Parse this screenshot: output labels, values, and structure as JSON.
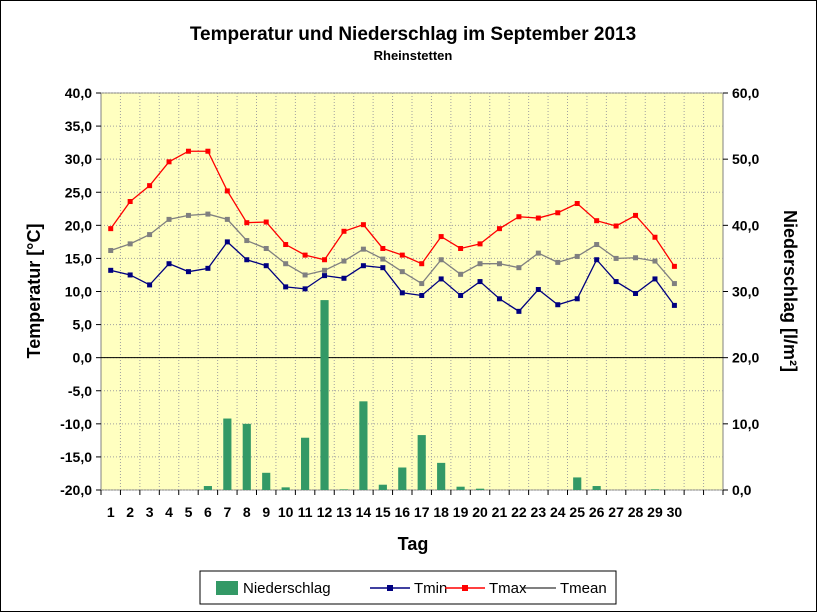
{
  "chart_data": {
    "type": "bar+line",
    "title": "Temperatur und Niederschlag im September 2013",
    "subtitle": "Rheinstetten",
    "xlabel": "Tag",
    "ylabel_left": "Temperatur [°C]",
    "ylabel_right": "Niederschlag [l/m²]",
    "ylim_left": [
      -20,
      40
    ],
    "ylim_right": [
      0,
      60
    ],
    "yticks_left": [
      "40,0",
      "35,0",
      "30,0",
      "25,0",
      "20,0",
      "15,0",
      "10,0",
      "5,0",
      "0,0",
      "-5,0",
      "-10,0",
      "-15,0",
      "-20,0"
    ],
    "yticks_right": [
      "60,0",
      "50,0",
      "40,0",
      "30,0",
      "20,0",
      "10,0",
      "0,0"
    ],
    "grid": true,
    "legend_position": "bottom",
    "background_color": "#FFFFC0",
    "categories": [
      "1",
      "2",
      "3",
      "4",
      "5",
      "6",
      "7",
      "8",
      "9",
      "10",
      "11",
      "12",
      "13",
      "14",
      "15",
      "16",
      "17",
      "18",
      "19",
      "20",
      "21",
      "22",
      "23",
      "24",
      "25",
      "26",
      "27",
      "28",
      "29",
      "30"
    ],
    "series": [
      {
        "name": "Niederschlag",
        "kind": "bar",
        "axis": "right",
        "color": "#339966",
        "values": [
          0,
          0,
          0,
          0,
          0,
          0.6,
          10.8,
          10.0,
          2.6,
          0.4,
          7.9,
          28.7,
          0.1,
          13.4,
          0.8,
          3.4,
          8.3,
          4.1,
          0.5,
          0.2,
          0,
          0,
          0,
          0,
          1.9,
          0.6,
          0,
          0,
          0.1,
          0
        ]
      },
      {
        "name": "Tmin",
        "kind": "line",
        "axis": "left",
        "color": "#000080",
        "values": [
          13.2,
          12.5,
          11.0,
          14.2,
          13.0,
          13.5,
          17.5,
          14.8,
          13.9,
          10.7,
          10.4,
          12.4,
          12.0,
          13.9,
          13.6,
          9.8,
          9.4,
          11.9,
          9.4,
          11.5,
          8.9,
          7.0,
          10.3,
          8.0,
          8.9,
          14.8,
          11.5,
          9.7,
          11.9,
          7.9
        ]
      },
      {
        "name": "Tmax",
        "kind": "line",
        "axis": "left",
        "color": "#FF0000",
        "values": [
          19.5,
          23.6,
          26.0,
          29.6,
          31.2,
          31.2,
          25.2,
          20.4,
          20.5,
          17.1,
          15.5,
          14.8,
          19.1,
          20.1,
          16.5,
          15.5,
          14.2,
          18.3,
          16.5,
          17.2,
          19.5,
          21.3,
          21.1,
          21.9,
          23.3,
          20.7,
          19.9,
          21.5,
          18.2,
          13.8
        ]
      },
      {
        "name": "Tmean",
        "kind": "line",
        "axis": "left",
        "color": "#808080",
        "values": [
          16.2,
          17.2,
          18.6,
          20.9,
          21.5,
          21.7,
          20.9,
          17.7,
          16.5,
          14.2,
          12.5,
          13.2,
          14.6,
          16.4,
          14.9,
          13.0,
          11.2,
          14.8,
          12.6,
          14.2,
          14.2,
          13.6,
          15.8,
          14.4,
          15.3,
          17.1,
          15.0,
          15.1,
          14.6,
          11.2
        ]
      }
    ]
  }
}
